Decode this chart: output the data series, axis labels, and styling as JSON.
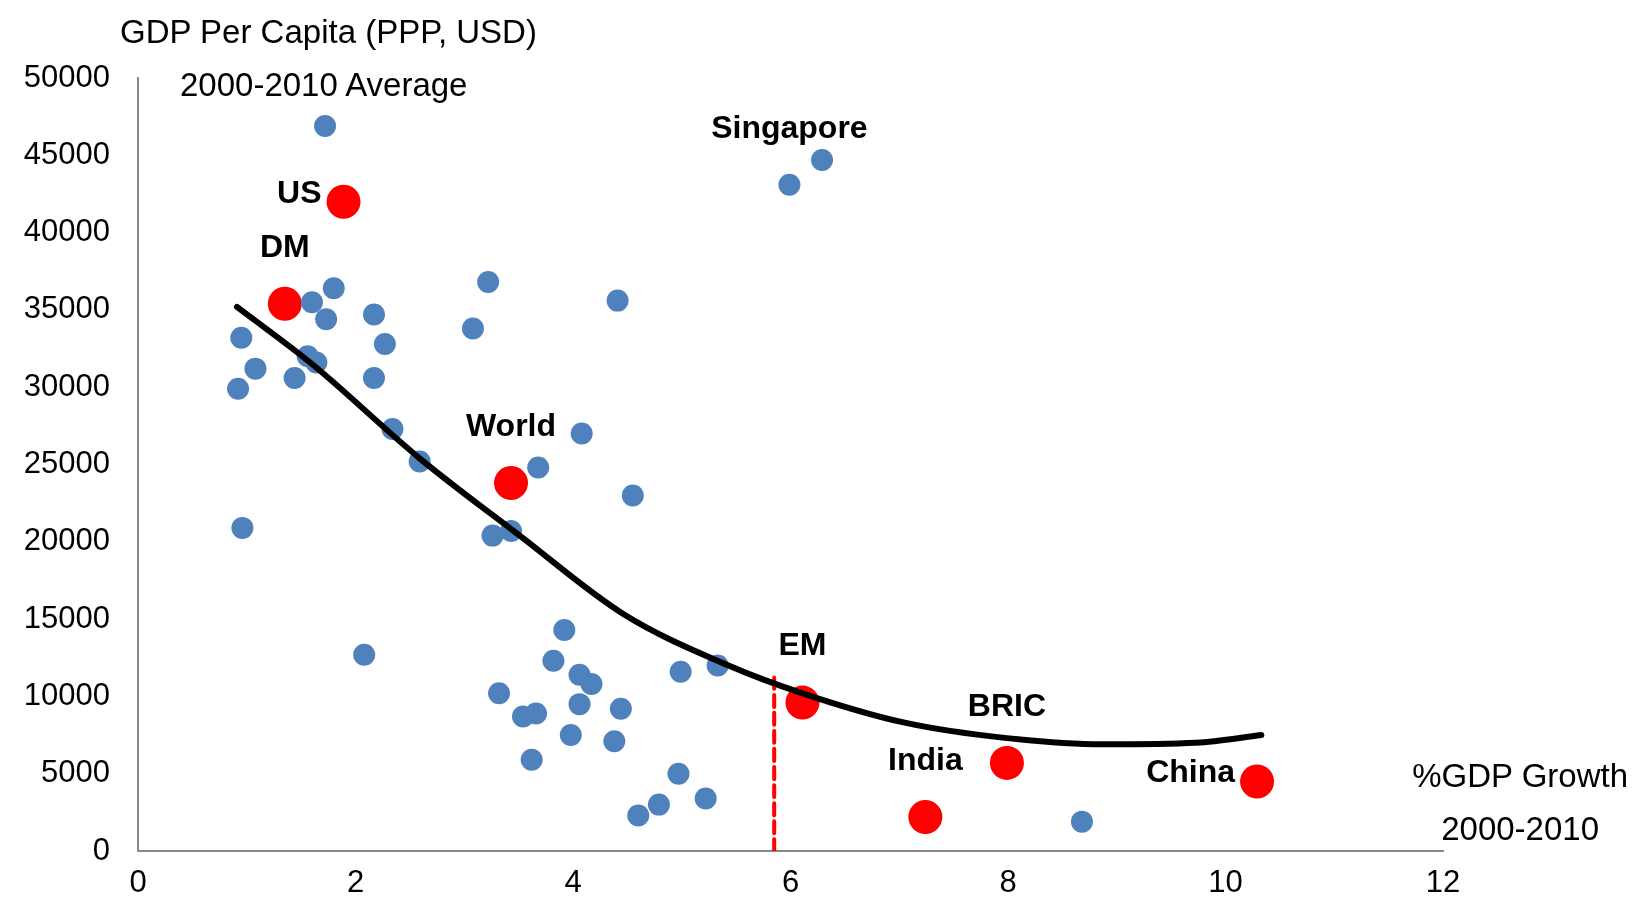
{
  "chart_data": {
    "type": "scatter",
    "ylabel": "GDP Per Capita (PPP, USD)\n2000-2010 Average",
    "xlabel": "%GDP Growth\n2000-2010",
    "xlim": [
      0,
      12
    ],
    "xticks": [
      0,
      2,
      4,
      6,
      8,
      10,
      12
    ],
    "ylim": [
      0,
      50000
    ],
    "yticks": [
      0,
      5000,
      10000,
      15000,
      20000,
      25000,
      30000,
      35000,
      40000,
      45000,
      50000
    ],
    "grid": false,
    "legend": false,
    "marker": "circle",
    "series": [
      {
        "type": "scatter",
        "color": "#4f81bd",
        "x": [
          1.72,
          5.99,
          6.29,
          1.8,
          3.22,
          4.41,
          2.17,
          1.73,
          1.6,
          0.95,
          2.27,
          3.08,
          1.56,
          1.64,
          1.08,
          0.92,
          1.44,
          2.17,
          2.34,
          4.08,
          2.59,
          3.68,
          4.55,
          0.96,
          3.26,
          3.43,
          2.08,
          3.92,
          3.82,
          4.06,
          4.17,
          4.99,
          5.33,
          3.32,
          3.54,
          3.66,
          4.06,
          4.44,
          3.98,
          4.38,
          3.62,
          4.97,
          4.6,
          4.79,
          5.22,
          8.68
        ],
        "values": [
          46900,
          43100,
          44700,
          36400,
          36800,
          35600,
          34700,
          34400,
          35500,
          33200,
          32800,
          33800,
          32000,
          31600,
          31200,
          29900,
          30600,
          30600,
          27300,
          27000,
          25200,
          24800,
          23000,
          20900,
          20400,
          20700,
          12700,
          14300,
          12300,
          11400,
          10800,
          11600,
          12000,
          10200,
          8700,
          8900,
          9500,
          9200,
          7500,
          7100,
          5900,
          5000,
          2300,
          3000,
          3400,
          1900
        ]
      },
      {
        "type": "scatter",
        "color": "#ff0000",
        "x": [
          1.89,
          1.35,
          3.43,
          6.11,
          7.99,
          7.24,
          10.29
        ],
        "values": [
          42000,
          35400,
          23800,
          9600,
          5700,
          2200,
          4500
        ]
      },
      {
        "type": "line",
        "color": "#000000",
        "marker": "none",
        "x": [
          0.91,
          1.6,
          2.59,
          3.51,
          4.47,
          5.43,
          6.11,
          7.05,
          7.99,
          8.87,
          9.73,
          10.33
        ],
        "values": [
          35200,
          31500,
          25400,
          20400,
          15300,
          12000,
          10200,
          8300,
          7300,
          6900,
          7000,
          7500
        ]
      },
      {
        "type": "line",
        "color": "#ff0000",
        "marker": "none",
        "line_style": "dashed",
        "x": [
          5.85,
          5.85
        ],
        "values": [
          0,
          11200
        ]
      }
    ],
    "annotations": [
      {
        "text": "US",
        "x": 1.89,
        "y": 42000
      },
      {
        "text": "DM",
        "x": 1.35,
        "y": 35400
      },
      {
        "text": "World",
        "x": 3.43,
        "y": 23800
      },
      {
        "text": "EM",
        "x": 6.11,
        "y": 9600
      },
      {
        "text": "BRIC",
        "x": 7.99,
        "y": 5700
      },
      {
        "text": "India",
        "x": 7.24,
        "y": 2200
      },
      {
        "text": "China",
        "x": 10.29,
        "y": 4500
      },
      {
        "text": "Singapore",
        "x": 5.99,
        "y": 43100
      }
    ]
  }
}
